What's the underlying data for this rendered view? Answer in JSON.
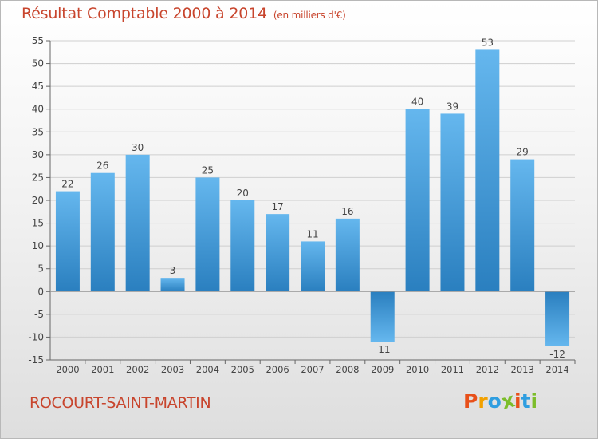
{
  "header": {
    "title": "Résultat Comptable 2000 à 2014",
    "unit": "(en milliers d'€)"
  },
  "footer": {
    "place": "ROCOURT-SAINT-MARTIN",
    "logo_letters": [
      "P",
      "r",
      "o",
      "x",
      "i",
      "t",
      "i"
    ],
    "logo_colors": [
      "#e8501a",
      "#f2a100",
      "#2f9ee0",
      "#7cbd2a",
      "#e8501a",
      "#2f9ee0",
      "#7cbd2a"
    ]
  },
  "colors": {
    "bar_light": "#65b7ee",
    "bar_dark": "#2a7fbf",
    "axis": "#666666",
    "grid": "#cfcfcf",
    "title": "#c8452d"
  },
  "chart_data": {
    "type": "bar",
    "categories": [
      "2000",
      "2001",
      "2002",
      "2003",
      "2004",
      "2005",
      "2006",
      "2007",
      "2008",
      "2009",
      "2010",
      "2011",
      "2012",
      "2013",
      "2014"
    ],
    "values": [
      22,
      26,
      30,
      3,
      25,
      20,
      17,
      11,
      16,
      -11,
      40,
      39,
      53,
      29,
      -12
    ],
    "data_labels": [
      "22",
      "26",
      "30",
      "3",
      "25",
      "20",
      "17",
      "11",
      "16",
      "-11",
      "40",
      "39",
      "53",
      "29",
      "-12"
    ],
    "ylim": [
      -15,
      55
    ],
    "yticks": [
      -15,
      -10,
      -5,
      0,
      5,
      10,
      15,
      20,
      25,
      30,
      35,
      40,
      45,
      50,
      55
    ],
    "title": "Résultat Comptable 2000 à 2014",
    "xlabel": "",
    "ylabel": "",
    "grid": true
  }
}
